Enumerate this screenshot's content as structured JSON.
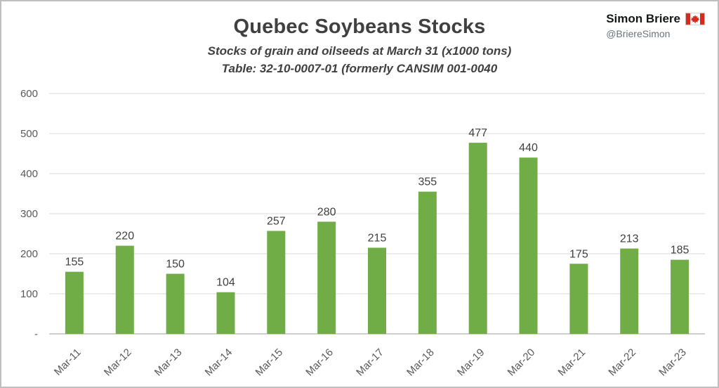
{
  "header": {
    "title": "Quebec Soybeans Stocks",
    "subtitle1": "Stocks of grain and oilseeds at March 31 (x1000 tons)",
    "subtitle2": "Table: 32-10-0007-01 (formerly CANSIM 001-0040",
    "attribution": {
      "name": "Simon Briere",
      "handle": "@BriereSimon",
      "flag": "canada-flag"
    }
  },
  "chart_data": {
    "type": "bar",
    "title": "Quebec Soybeans Stocks",
    "subtitle": "Stocks of grain and oilseeds at March 31 (x1000 tons)",
    "source_note": "Table: 32-10-0007-01 (formerly CANSIM 001-0040",
    "categories": [
      "Mar-11",
      "Mar-12",
      "Mar-13",
      "Mar-14",
      "Mar-15",
      "Mar-16",
      "Mar-17",
      "Mar-18",
      "Mar-19",
      "Mar-20",
      "Mar-21",
      "Mar-22",
      "Mar-23"
    ],
    "values": [
      155,
      220,
      150,
      104,
      257,
      280,
      215,
      355,
      477,
      440,
      175,
      213,
      185
    ],
    "xlabel": "",
    "ylabel": "",
    "ylim": [
      0,
      600
    ],
    "ytick_interval": 100,
    "ytick_labels": [
      "-",
      "100",
      "200",
      "300",
      "400",
      "500",
      "600"
    ],
    "grid": true,
    "legend": "none",
    "value_labels": true,
    "bar_color": "#70AD47",
    "grid_color": "#D9D9D9",
    "axis_color": "#BFBFBF",
    "label_color": "#404040",
    "tick_color": "#595959"
  }
}
